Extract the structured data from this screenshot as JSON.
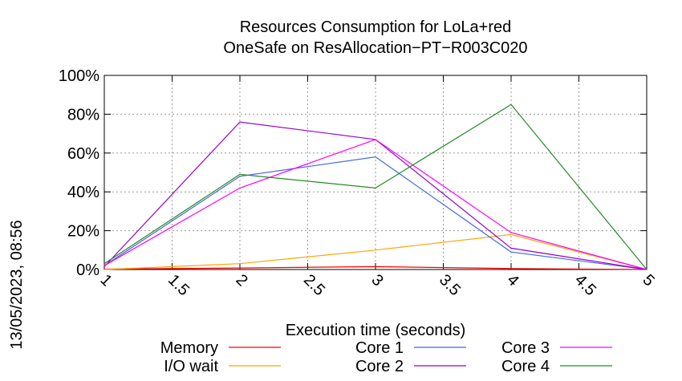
{
  "side_label": "13/05/2023, 08:56",
  "chart_data": {
    "type": "line",
    "title": "Resources Consumption for LoLa+red",
    "subtitle": "OneSafe on ResAllocation−PT−R003C020",
    "xlabel": "Execution time (seconds)",
    "ylabel": "",
    "xlim": [
      1,
      5
    ],
    "ylim": [
      0,
      100
    ],
    "x_ticks": [
      1,
      1.5,
      2,
      2.5,
      3,
      3.5,
      4,
      4.5,
      5
    ],
    "x_tick_labels": [
      "1",
      "1.5",
      "2",
      "2.5",
      "3",
      "3.5",
      "4",
      "4.5",
      "5"
    ],
    "y_ticks": [
      0,
      20,
      40,
      60,
      80,
      100
    ],
    "y_tick_labels": [
      "0%",
      "20%",
      "40%",
      "60%",
      "80%",
      "100%"
    ],
    "grid": true,
    "legend_position": "bottom",
    "x": [
      1,
      2,
      3,
      4,
      5
    ],
    "series": [
      {
        "name": "Memory",
        "color": "#ff0000",
        "values": [
          0.2,
          0.8,
          1.5,
          0.5,
          0
        ]
      },
      {
        "name": "I/O wait",
        "color": "#ffa500",
        "values": [
          0,
          3,
          10,
          18,
          0
        ]
      },
      {
        "name": "Core 1",
        "color": "#4169e1",
        "values": [
          2,
          48,
          58,
          9,
          0
        ]
      },
      {
        "name": "Core 2",
        "color": "#9400d3",
        "values": [
          1.5,
          76,
          67,
          11,
          0
        ]
      },
      {
        "name": "Core 3",
        "color": "#ff00ff",
        "values": [
          2,
          42,
          67,
          19,
          0
        ]
      },
      {
        "name": "Core 4",
        "color": "#228b22",
        "values": [
          3,
          49,
          42,
          85,
          0
        ]
      }
    ]
  }
}
